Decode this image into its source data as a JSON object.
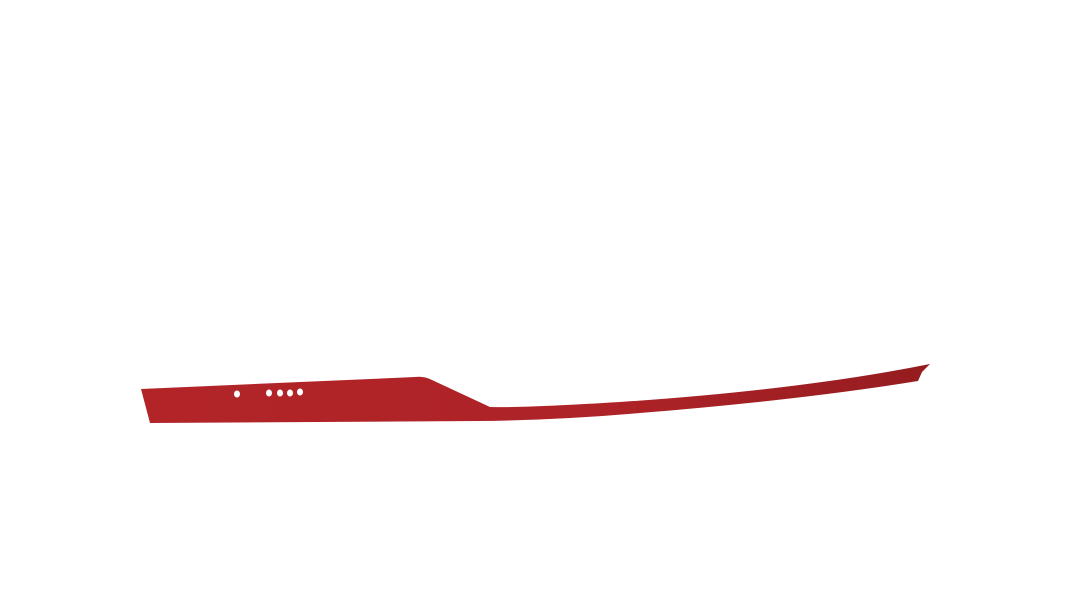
{
  "scene": {
    "subject": "boat-hull",
    "colors": {
      "background": "#ffffff",
      "hull": "#b22428",
      "hull_dark": "#951c20",
      "portholes": "#ffffff"
    },
    "porthole_count": 5
  }
}
